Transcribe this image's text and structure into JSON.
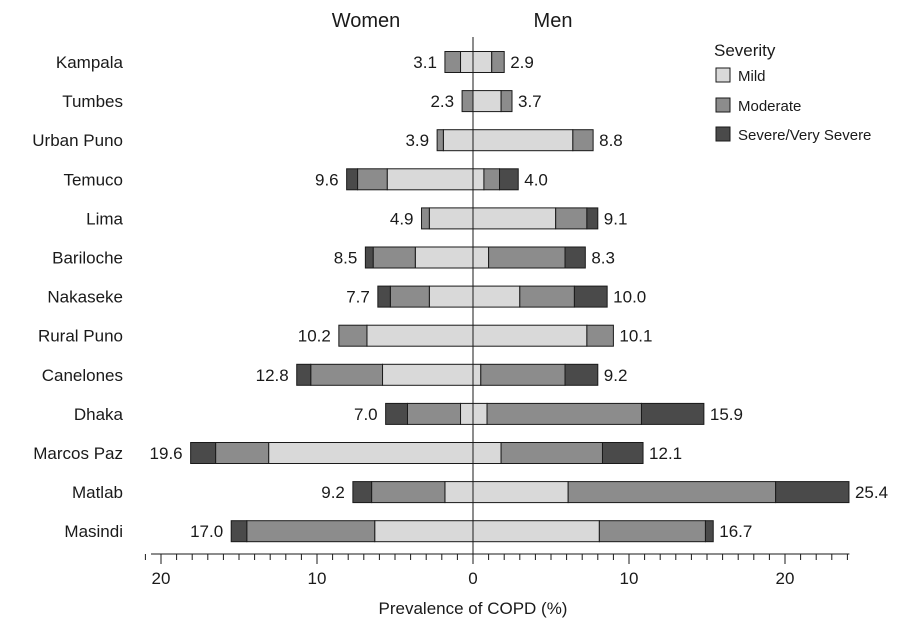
{
  "chart_data": {
    "type": "bar",
    "orientation": "horizontal-diverging",
    "group_headers": {
      "left": "Women",
      "right": "Men"
    },
    "xlabel": "Prevalence of COPD (%)",
    "x_ticks": [
      20,
      10,
      0,
      10,
      20
    ],
    "xlim": [
      -20,
      24
    ],
    "legend": {
      "title": "Severity",
      "position": "top-right",
      "items": [
        {
          "name": "Mild",
          "color": "#d9d9d9"
        },
        {
          "name": "Moderate",
          "color": "#8c8c8c"
        },
        {
          "name": "Severe/Very Severe",
          "color": "#4a4a4a"
        }
      ]
    },
    "categories": [
      "Kampala",
      "Tumbes",
      "Urban Puno",
      "Temuco",
      "Lima",
      "Bariloche",
      "Nakaseke",
      "Rural Puno",
      "Canelones",
      "Dhaka",
      "Marcos Paz",
      "Matlab",
      "Masindi"
    ],
    "women": [
      {
        "total": "3.1",
        "mild": 0.8,
        "moderate": 1.0,
        "severe": 0.0
      },
      {
        "total": "2.3",
        "mild": 0.0,
        "moderate": 0.7,
        "severe": 0.0
      },
      {
        "total": "3.9",
        "mild": 1.9,
        "moderate": 0.4,
        "severe": 0.0
      },
      {
        "total": "9.6",
        "mild": 5.5,
        "moderate": 1.9,
        "severe": 0.7
      },
      {
        "total": "4.9",
        "mild": 2.8,
        "moderate": 0.5,
        "severe": 0.0
      },
      {
        "total": "8.5",
        "mild": 3.7,
        "moderate": 2.7,
        "severe": 0.5
      },
      {
        "total": "7.7",
        "mild": 2.8,
        "moderate": 2.5,
        "severe": 0.8
      },
      {
        "total": "10.2",
        "mild": 6.8,
        "moderate": 1.8,
        "severe": 0.0
      },
      {
        "total": "12.8",
        "mild": 5.8,
        "moderate": 4.6,
        "severe": 0.9
      },
      {
        "total": "7.0",
        "mild": 0.8,
        "moderate": 3.4,
        "severe": 1.4
      },
      {
        "total": "19.6",
        "mild": 13.1,
        "moderate": 3.4,
        "severe": 1.6
      },
      {
        "total": "9.2",
        "mild": 1.8,
        "moderate": 4.7,
        "severe": 1.2
      },
      {
        "total": "17.0",
        "mild": 6.3,
        "moderate": 8.2,
        "severe": 1.0
      }
    ],
    "men": [
      {
        "total": "2.9",
        "mild": 1.2,
        "moderate": 0.8,
        "severe": 0.0
      },
      {
        "total": "3.7",
        "mild": 1.8,
        "moderate": 0.7,
        "severe": 0.0
      },
      {
        "total": "8.8",
        "mild": 6.4,
        "moderate": 1.3,
        "severe": 0.0
      },
      {
        "total": "4.0",
        "mild": 0.7,
        "moderate": 1.0,
        "severe": 1.2
      },
      {
        "total": "9.1",
        "mild": 5.3,
        "moderate": 2.0,
        "severe": 0.7
      },
      {
        "total": "8.3",
        "mild": 1.0,
        "moderate": 4.9,
        "severe": 1.3
      },
      {
        "total": "10.0",
        "mild": 3.0,
        "moderate": 3.5,
        "severe": 2.1
      },
      {
        "total": "10.1",
        "mild": 7.3,
        "moderate": 1.7,
        "severe": 0.0
      },
      {
        "total": "9.2",
        "mild": 0.5,
        "moderate": 5.4,
        "severe": 2.1
      },
      {
        "total": "15.9",
        "mild": 0.9,
        "moderate": 9.9,
        "severe": 4.0
      },
      {
        "total": "12.1",
        "mild": 1.8,
        "moderate": 6.5,
        "severe": 2.6
      },
      {
        "total": "25.4",
        "mild": 6.1,
        "moderate": 13.3,
        "severe": 4.7
      },
      {
        "total": "16.7",
        "mild": 8.1,
        "moderate": 6.8,
        "severe": 0.5
      }
    ]
  }
}
